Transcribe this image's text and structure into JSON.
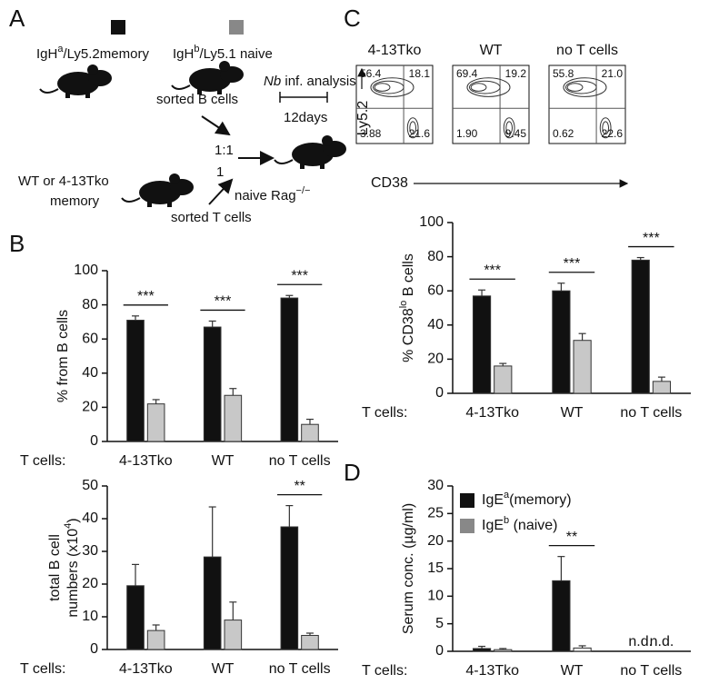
{
  "panel_labels": [
    "A",
    "B",
    "C",
    "D"
  ],
  "schematic": {
    "memory_donor": [
      {
        "text": "IgH"
      },
      {
        "text": "a",
        "sup": true
      },
      {
        "text": "/Ly5.2memory"
      }
    ],
    "naive_donor": [
      {
        "text": "IgH"
      },
      {
        "text": "b",
        "sup": true
      },
      {
        "text": "/Ly5.1 naive"
      }
    ],
    "sorted_b": "sorted  B cells",
    "infection": [
      {
        "text": "Nb",
        "italic": true
      },
      {
        "text": " inf. analysis"
      }
    ],
    "days": "12days",
    "ratio": "1:1",
    "one": "1",
    "t_donor_1": "WT or 4-13Tko",
    "t_donor_2": "memory",
    "sorted_t": "sorted T cells",
    "recipient": [
      {
        "text": "naive Rag"
      },
      {
        "text": "−/−",
        "sup": true
      }
    ]
  },
  "flow": {
    "xlabel": "CD38",
    "ylabel": "Ly5.2",
    "plots": [
      {
        "title": "4-13Tko",
        "quadrants": [
          "56.4",
          "18.1",
          "3.88",
          "21.6"
        ]
      },
      {
        "title": "WT",
        "quadrants": [
          "69.4",
          "19.2",
          "1.90",
          "9.45"
        ]
      },
      {
        "title": "no T cells",
        "quadrants": [
          "55.8",
          "21.0",
          "0.62",
          "22.6"
        ]
      }
    ]
  },
  "chart_data": [
    {
      "type": "bar",
      "ylabel": [
        {
          "text": "% from B cells"
        }
      ],
      "xlabel": "T cells:",
      "categories": [
        "4-13Tko",
        "WT",
        "no T cells"
      ],
      "series": [
        {
          "color": "#111111",
          "values": [
            71,
            67,
            84
          ],
          "errors": [
            2.5,
            3.5,
            1.5
          ]
        },
        {
          "color": "#c8c8c8",
          "values": [
            22,
            27,
            10
          ],
          "errors": [
            2.5,
            4,
            3
          ]
        }
      ],
      "significance": [
        "***",
        "***",
        "***"
      ],
      "ylim": [
        0,
        100
      ],
      "yticks": [
        0,
        20,
        40,
        60,
        80,
        100
      ]
    },
    {
      "type": "bar",
      "ylabel": [
        {
          "text": "total B cell"
        },
        {
          "text": "numbers (x10",
          "line": 2
        },
        {
          "text": "4",
          "sup": true,
          "line": 2
        },
        {
          "text": ")",
          "line": 2
        }
      ],
      "xlabel": "T cells:",
      "categories": [
        "4-13Tko",
        "WT",
        "no T cells"
      ],
      "series": [
        {
          "color": "#111111",
          "values": [
            19.5,
            28.3,
            37.5
          ],
          "errors": [
            6.5,
            15.3,
            6.5
          ]
        },
        {
          "color": "#c8c8c8",
          "values": [
            5.8,
            9,
            4.3
          ],
          "errors": [
            1.7,
            5.5,
            0.7
          ]
        }
      ],
      "significance": [
        null,
        null,
        "**"
      ],
      "ylim": [
        0,
        50
      ],
      "yticks": [
        0,
        10,
        20,
        30,
        40,
        50
      ]
    },
    {
      "type": "bar",
      "ylabel": [
        {
          "text": "% CD38"
        },
        {
          "text": "lo",
          "sup": true
        },
        {
          "text": " B cells"
        }
      ],
      "xlabel": "T cells:",
      "categories": [
        "4-13Tko",
        "WT",
        "no T cells"
      ],
      "series": [
        {
          "color": "#111111",
          "values": [
            57,
            60,
            78
          ],
          "errors": [
            3.5,
            4.5,
            1.5
          ]
        },
        {
          "color": "#c8c8c8",
          "values": [
            16,
            31,
            7
          ],
          "errors": [
            1.5,
            4,
            2.5
          ]
        }
      ],
      "significance": [
        "***",
        "***",
        "***"
      ],
      "ylim": [
        0,
        100
      ],
      "yticks": [
        0,
        20,
        40,
        60,
        80,
        100
      ]
    },
    {
      "type": "bar",
      "ylabel": [
        {
          "text": "Serum conc. (µg/ml)"
        }
      ],
      "xlabel": "T cells:",
      "categories": [
        "4-13Tko",
        "WT",
        "no T cells"
      ],
      "series": [
        {
          "name": [
            {
              "text": "IgE"
            },
            {
              "text": "a",
              "sup": true
            },
            {
              "text": "(memory)"
            }
          ],
          "color": "#111111",
          "values": [
            0.5,
            12.8,
            null
          ],
          "errors": [
            0.4,
            4.4,
            null
          ],
          "missing_labels": [
            null,
            null,
            "n.d."
          ]
        },
        {
          "name": [
            {
              "text": "IgE"
            },
            {
              "text": "b",
              "sup": true
            },
            {
              "text": " (naive)"
            }
          ],
          "color": "#888888",
          "bar_color": "#eeeeee",
          "values": [
            0.3,
            0.6,
            null
          ],
          "errors": [
            0.2,
            0.4,
            null
          ],
          "missing_labels": [
            null,
            null,
            "n.d."
          ]
        }
      ],
      "significance": [
        null,
        "**",
        null
      ],
      "legend": "upper left",
      "ylim": [
        0,
        30
      ],
      "yticks": [
        0,
        5,
        10,
        15,
        20,
        25,
        30
      ]
    }
  ]
}
